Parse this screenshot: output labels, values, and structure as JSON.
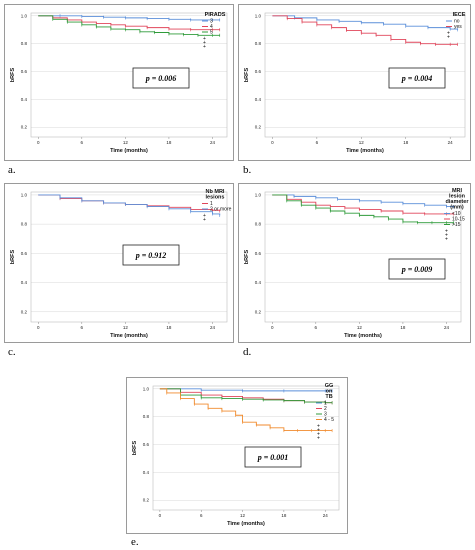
{
  "chart_data": [
    {
      "id": "a",
      "panel_label": "a.",
      "type": "line",
      "xlabel": "Time (months)",
      "ylabel": "bRFS",
      "x_ticks": [
        0,
        6,
        12,
        18,
        24
      ],
      "y_ticks": [
        0.2,
        0.4,
        0.6,
        0.8,
        1.0
      ],
      "xlim": [
        -1,
        26
      ],
      "ylim": [
        0.13,
        1.02
      ],
      "legend_title": [
        "PIRADS"
      ],
      "pvalue_text": "p = 0.006",
      "series": [
        {
          "name": "3",
          "color": "#5b8fd9",
          "x": [
            0,
            3,
            6,
            9,
            12,
            15,
            18,
            21,
            24,
            25
          ],
          "y": [
            1.0,
            1.0,
            0.995,
            0.99,
            0.985,
            0.98,
            0.975,
            0.97,
            0.97,
            0.97
          ]
        },
        {
          "name": "4",
          "color": "#e0455a",
          "x": [
            0,
            2,
            4,
            6,
            8,
            10,
            12,
            15,
            18,
            21,
            24,
            25
          ],
          "y": [
            1.0,
            0.985,
            0.97,
            0.955,
            0.945,
            0.935,
            0.925,
            0.915,
            0.905,
            0.9,
            0.9,
            0.9
          ]
        },
        {
          "name": "5",
          "color": "#2f9b3a",
          "x": [
            0,
            2,
            4,
            6,
            8,
            10,
            12,
            14,
            16,
            18,
            20,
            22,
            24,
            25
          ],
          "y": [
            1.0,
            0.975,
            0.955,
            0.935,
            0.92,
            0.905,
            0.9,
            0.885,
            0.88,
            0.87,
            0.865,
            0.86,
            0.86,
            0.86
          ]
        }
      ]
    },
    {
      "id": "b",
      "panel_label": "b.",
      "type": "line",
      "xlabel": "Time (months)",
      "ylabel": "bRFS",
      "x_ticks": [
        0,
        6,
        12,
        18,
        24
      ],
      "y_ticks": [
        0.2,
        0.4,
        0.6,
        0.8,
        1.0
      ],
      "xlim": [
        -1,
        26
      ],
      "ylim": [
        0.13,
        1.02
      ],
      "legend_title": [
        "IECE"
      ],
      "pvalue_text": "p = 0.004",
      "series": [
        {
          "name": "no",
          "color": "#5b8fd9",
          "x": [
            0,
            3,
            6,
            9,
            12,
            15,
            18,
            21,
            24,
            25
          ],
          "y": [
            1.0,
            0.985,
            0.97,
            0.96,
            0.95,
            0.94,
            0.925,
            0.915,
            0.905,
            0.9
          ]
        },
        {
          "name": "yes",
          "color": "#e0455a",
          "x": [
            0,
            2,
            4,
            6,
            8,
            10,
            12,
            14,
            16,
            18,
            20,
            22,
            24,
            25
          ],
          "y": [
            1.0,
            0.98,
            0.955,
            0.935,
            0.915,
            0.895,
            0.875,
            0.86,
            0.83,
            0.81,
            0.8,
            0.795,
            0.795,
            0.795
          ]
        }
      ]
    },
    {
      "id": "c",
      "panel_label": "c.",
      "type": "line",
      "xlabel": "Time (months)",
      "ylabel": "bRFS",
      "x_ticks": [
        0,
        6,
        12,
        18,
        24
      ],
      "y_ticks": [
        0.2,
        0.4,
        0.6,
        0.8,
        1.0
      ],
      "xlim": [
        -1,
        26
      ],
      "ylim": [
        0.13,
        1.02
      ],
      "legend_title": [
        "Nb MRI",
        "lesions"
      ],
      "pvalue_text": "p = 0.912",
      "series": [
        {
          "name": "1",
          "color": "#e0455a",
          "x": [
            0,
            3,
            6,
            9,
            12,
            15,
            18,
            21,
            24,
            25
          ],
          "y": [
            1.0,
            0.975,
            0.96,
            0.945,
            0.935,
            0.925,
            0.915,
            0.9,
            0.895,
            0.89
          ]
        },
        {
          "name": "2 or more",
          "color": "#5b8fd9",
          "x": [
            0,
            3,
            6,
            9,
            12,
            15,
            18,
            21,
            24,
            25
          ],
          "y": [
            1.0,
            0.98,
            0.96,
            0.945,
            0.935,
            0.92,
            0.905,
            0.885,
            0.87,
            0.86
          ]
        }
      ]
    },
    {
      "id": "d",
      "panel_label": "d.",
      "type": "line",
      "xlabel": "Time (months)",
      "ylabel": "bRFS",
      "x_ticks": [
        0,
        6,
        12,
        18,
        24
      ],
      "y_ticks": [
        0.2,
        0.4,
        0.6,
        0.8,
        1.0
      ],
      "xlim": [
        -1,
        26
      ],
      "ylim": [
        0.13,
        1.02
      ],
      "legend_title": [
        "MRI",
        "lesion",
        "diameter",
        "(mm)"
      ],
      "pvalue_text": "p = 0.009",
      "series": [
        {
          "name": "<10",
          "color": "#5b8fd9",
          "x": [
            0,
            3,
            6,
            9,
            12,
            15,
            18,
            21,
            24,
            25
          ],
          "y": [
            1.0,
            0.99,
            0.98,
            0.97,
            0.96,
            0.95,
            0.94,
            0.93,
            0.92,
            0.92
          ]
        },
        {
          "name": "10-15",
          "color": "#e0455a",
          "x": [
            0,
            2,
            4,
            6,
            8,
            10,
            12,
            15,
            18,
            21,
            24,
            25
          ],
          "y": [
            1.0,
            0.97,
            0.95,
            0.93,
            0.92,
            0.91,
            0.9,
            0.89,
            0.875,
            0.87,
            0.87,
            0.87
          ]
        },
        {
          "name": ">15",
          "color": "#2f9b3a",
          "x": [
            0,
            2,
            4,
            6,
            8,
            10,
            12,
            14,
            16,
            18,
            20,
            22,
            24,
            25
          ],
          "y": [
            1.0,
            0.96,
            0.93,
            0.91,
            0.89,
            0.875,
            0.86,
            0.85,
            0.835,
            0.815,
            0.81,
            0.81,
            0.81,
            0.81
          ]
        }
      ]
    },
    {
      "id": "e",
      "panel_label": "e.",
      "type": "line",
      "xlabel": "Time (months)",
      "ylabel": "bRFS",
      "x_ticks": [
        0,
        6,
        12,
        18,
        24
      ],
      "y_ticks": [
        0.2,
        0.4,
        0.6,
        0.8,
        1.0
      ],
      "xlim": [
        -1,
        26
      ],
      "ylim": [
        0.13,
        1.02
      ],
      "legend_title": [
        "GG",
        "on",
        "TB"
      ],
      "pvalue_text": "p = 0.001",
      "series": [
        {
          "name": "1",
          "color": "#5b8fd9",
          "x": [
            0,
            6,
            12,
            18,
            24,
            25
          ],
          "y": [
            1.0,
            0.99,
            0.985,
            0.985,
            0.985,
            0.985
          ]
        },
        {
          "name": "2",
          "color": "#e0455a",
          "x": [
            0,
            3,
            6,
            9,
            12,
            15,
            18,
            21,
            24,
            25
          ],
          "y": [
            1.0,
            0.975,
            0.955,
            0.945,
            0.935,
            0.925,
            0.915,
            0.905,
            0.9,
            0.9
          ]
        },
        {
          "name": "3",
          "color": "#2f9b3a",
          "x": [
            0,
            3,
            6,
            9,
            12,
            15,
            18,
            21,
            24,
            25
          ],
          "y": [
            1.0,
            0.955,
            0.935,
            0.93,
            0.925,
            0.92,
            0.915,
            0.905,
            0.9,
            0.9
          ]
        },
        {
          "name": "4 - 5",
          "color": "#f08a2c",
          "x": [
            0,
            1,
            3,
            5,
            7,
            9,
            11,
            12,
            14,
            16,
            18,
            20,
            22,
            24,
            25
          ],
          "y": [
            1.0,
            0.97,
            0.93,
            0.89,
            0.86,
            0.84,
            0.81,
            0.76,
            0.74,
            0.72,
            0.7,
            0.7,
            0.7,
            0.7,
            0.7
          ]
        }
      ]
    }
  ]
}
